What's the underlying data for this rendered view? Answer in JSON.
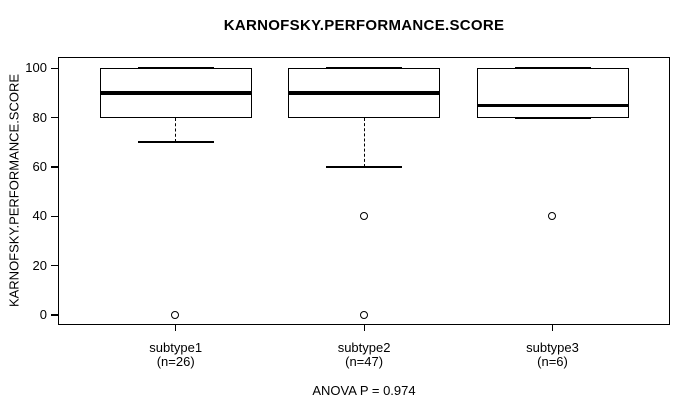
{
  "chart_data": {
    "type": "boxplot",
    "title": "KARNOFSKY.PERFORMANCE.SCORE",
    "ylabel": "KARNOFSKY.PERFORMANCE.SCORE",
    "annotation": "ANOVA P = 0.974",
    "ylim": [
      0,
      100
    ],
    "yticks": [
      0,
      20,
      40,
      60,
      80,
      100
    ],
    "grid": false,
    "groups": [
      {
        "label": "subtype1",
        "sublabel": "(n=26)",
        "n": 26,
        "stats": {
          "whisker_low": 70,
          "q1": 80,
          "median": 90,
          "q3": 100,
          "whisker_high": 100
        },
        "outliers": [
          0
        ]
      },
      {
        "label": "subtype2",
        "sublabel": "(n=47)",
        "n": 47,
        "stats": {
          "whisker_low": 60,
          "q1": 80,
          "median": 90,
          "q3": 100,
          "whisker_high": 100
        },
        "outliers": [
          40,
          0
        ]
      },
      {
        "label": "subtype3",
        "sublabel": "(n=6)",
        "n": 6,
        "stats": {
          "whisker_low": 80,
          "q1": 80,
          "median": 85,
          "q3": 100,
          "whisker_high": 100
        },
        "outliers": [
          40
        ]
      }
    ],
    "colors": {
      "line": "#000000",
      "box_fill": "#ffffff",
      "background": "#ffffff",
      "text": "#000000"
    }
  }
}
